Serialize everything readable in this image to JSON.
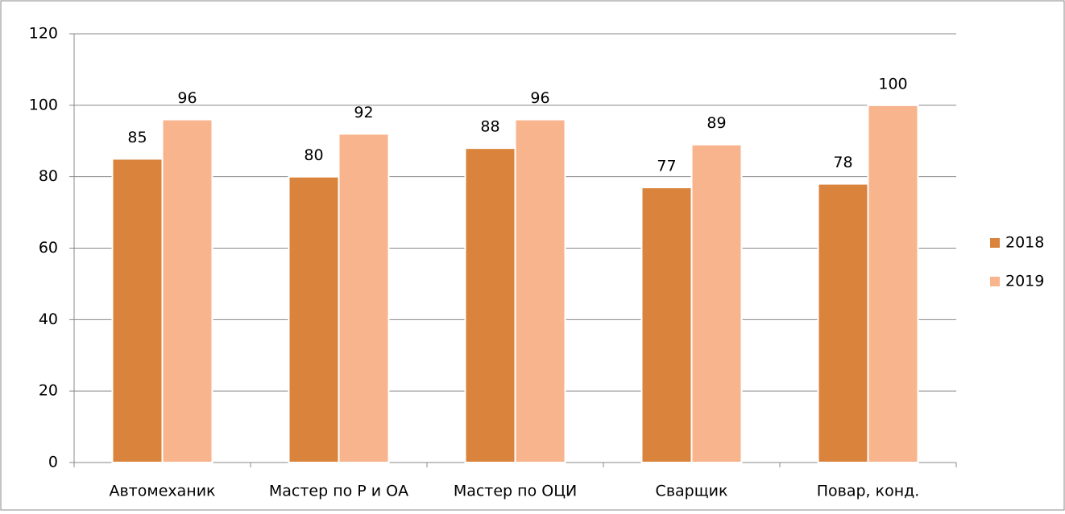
{
  "chart_data": {
    "type": "bar",
    "categories": [
      "Автомеханик",
      "Мастер по Р и ОА",
      "Мастер по ОЦИ",
      "Сварщик",
      "Повар, конд."
    ],
    "series": [
      {
        "name": "2018",
        "color": "#d9833d",
        "values": [
          85,
          80,
          88,
          77,
          78
        ]
      },
      {
        "name": "2019",
        "color": "#f8b48c",
        "values": [
          96,
          92,
          96,
          89,
          100
        ]
      }
    ],
    "ylim": [
      0,
      120
    ],
    "yticks": [
      0,
      20,
      40,
      60,
      80,
      100,
      120
    ],
    "grid": true,
    "legend": "right"
  }
}
